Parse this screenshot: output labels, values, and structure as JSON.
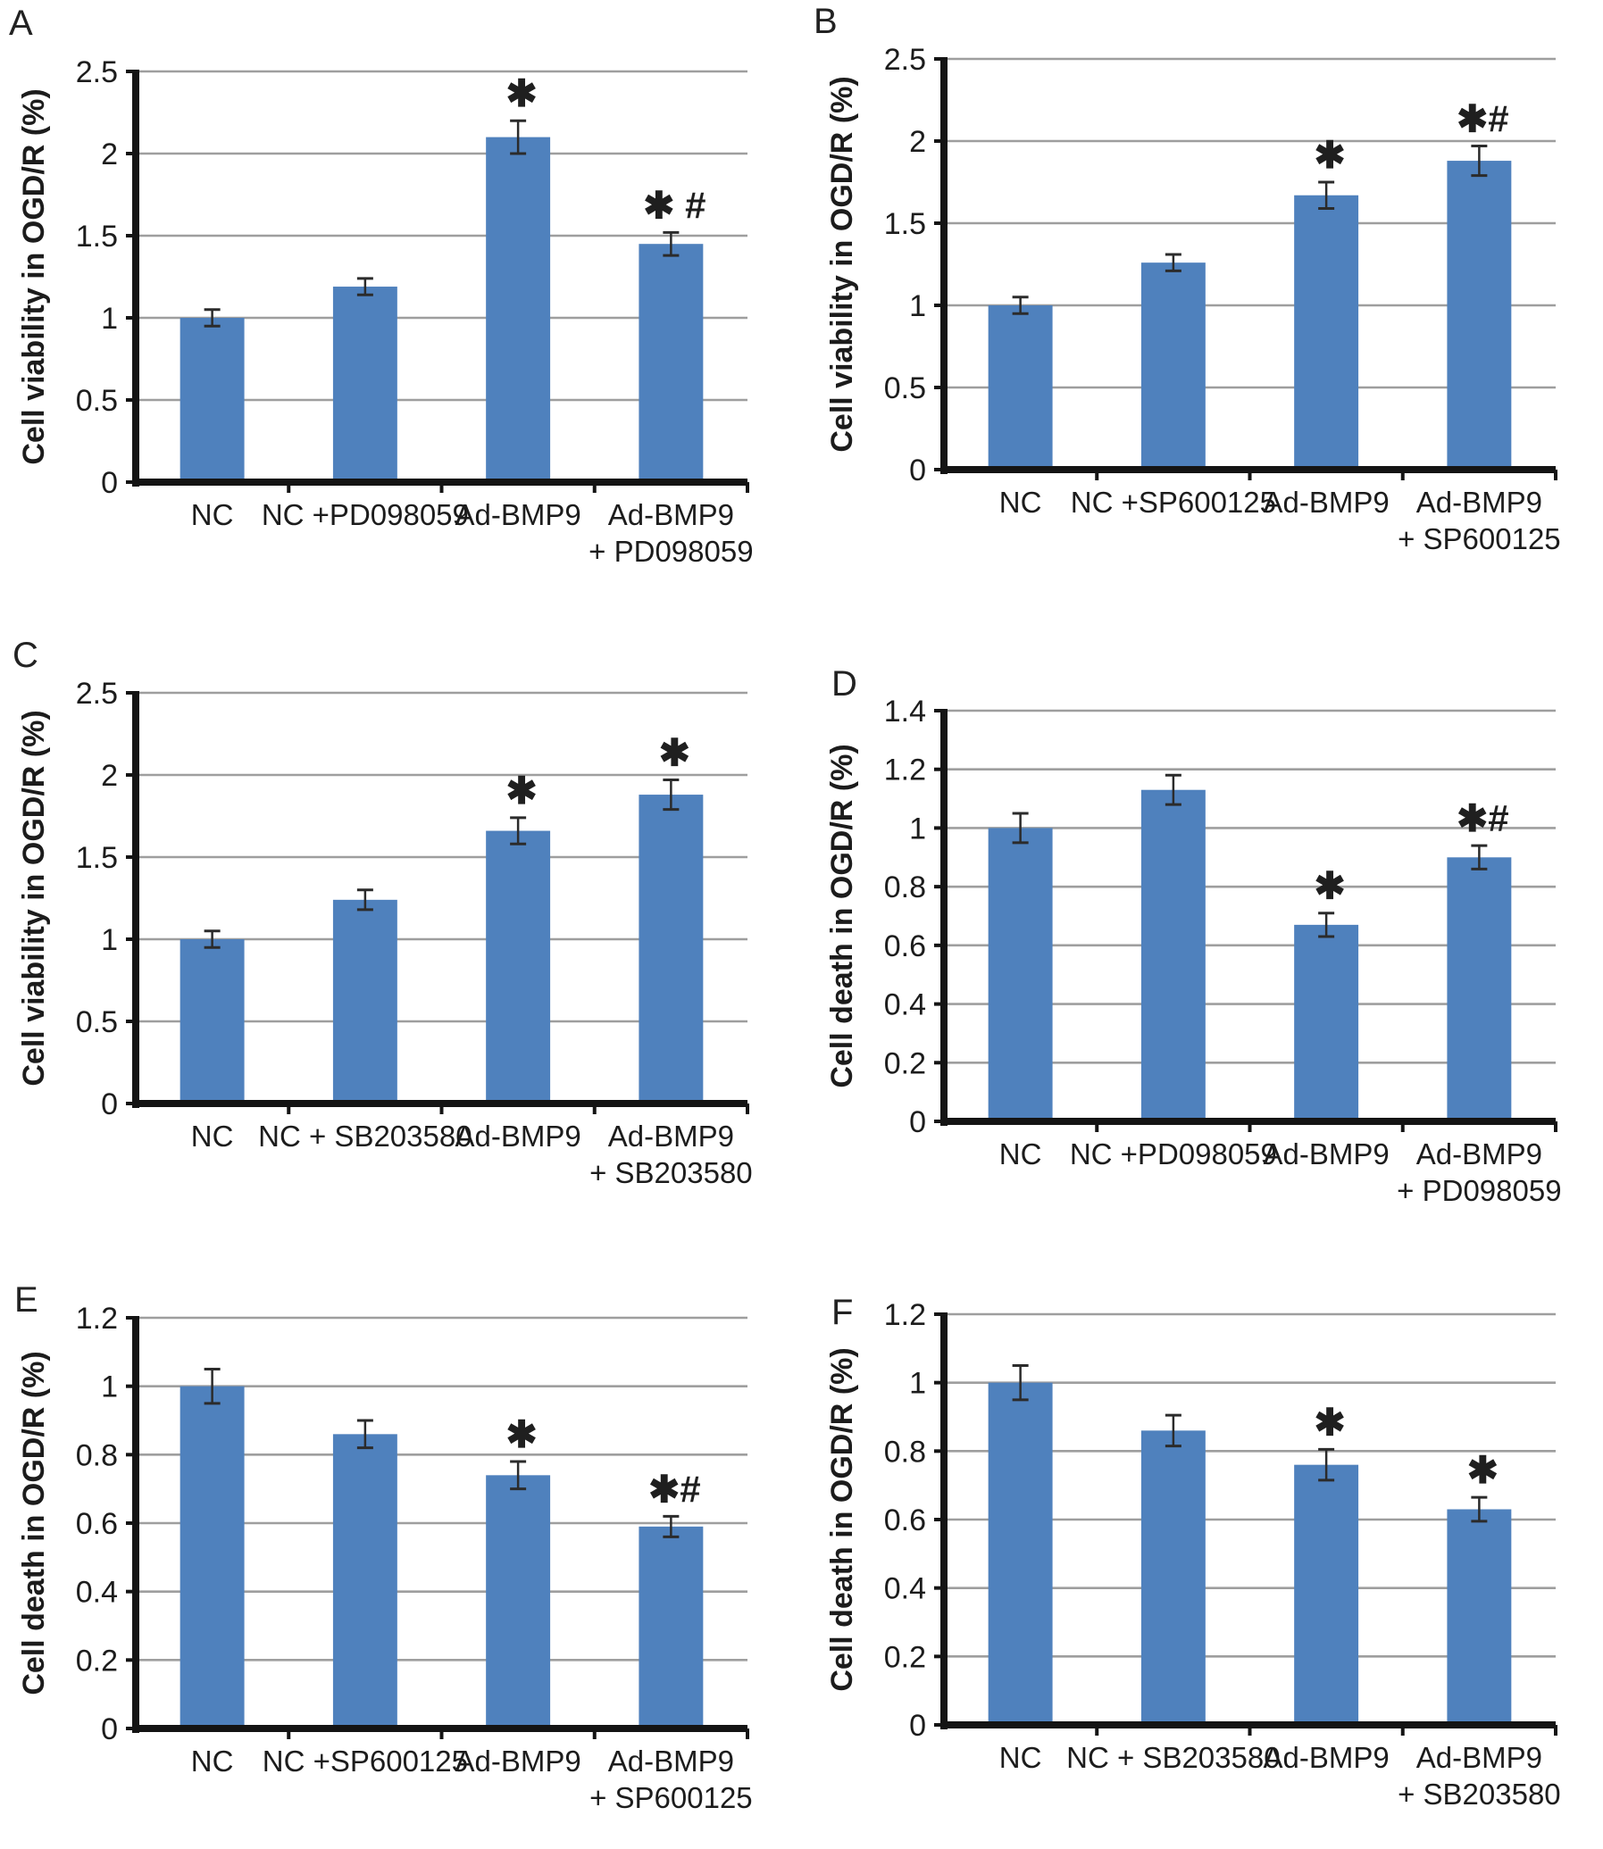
{
  "figure": {
    "description": "Six-panel bar chart figure of cell viability and cell death in OGD/R",
    "background": "#ffffff",
    "bar_color": "#4f81bd",
    "grid_color": "#9e9e9e",
    "axis_color": "#141414",
    "error_color": "#2b2b2b",
    "text_color": "#1c1c1c",
    "annotation_color": "#1f1f1f"
  },
  "chart_data": [
    {
      "panel_label": "A",
      "type": "bar",
      "title": "",
      "xlabel": "",
      "ylabel": "Cell viability in OGD/R (%)",
      "ylim": [
        0,
        2.5
      ],
      "yticks": [
        0,
        0.5,
        1,
        1.5,
        2,
        2.5
      ],
      "ytick_labels": [
        "0",
        "0.5",
        "1",
        "1.5",
        "2",
        "2.5"
      ],
      "grid": "horizontal",
      "legend": "none",
      "categories": [
        "NC",
        "NC +PD098059",
        "Ad-BMP9",
        "Ad-BMP9\n+ PD098059"
      ],
      "values": [
        1.0,
        1.19,
        2.1,
        1.45
      ],
      "errors": [
        0.05,
        0.05,
        0.1,
        0.07
      ],
      "annotations": [
        "",
        "",
        "✱",
        "✱ #"
      ]
    },
    {
      "panel_label": "B",
      "type": "bar",
      "title": "",
      "xlabel": "",
      "ylabel": "Cell viability in OGD/R (%)",
      "ylim": [
        0,
        2.5
      ],
      "yticks": [
        0,
        0.5,
        1,
        1.5,
        2,
        2.5
      ],
      "ytick_labels": [
        "0",
        "0.5",
        "1",
        "1.5",
        "2",
        "2.5"
      ],
      "grid": "horizontal",
      "legend": "none",
      "categories": [
        "NC",
        "NC +SP600125",
        "Ad-BMP9",
        "Ad-BMP9\n+ SP600125"
      ],
      "values": [
        1.0,
        1.26,
        1.67,
        1.88
      ],
      "errors": [
        0.05,
        0.05,
        0.08,
        0.09
      ],
      "annotations": [
        "",
        "",
        "✱",
        "✱#"
      ]
    },
    {
      "panel_label": "C",
      "type": "bar",
      "title": "",
      "xlabel": "",
      "ylabel": "Cell viability in OGD/R (%)",
      "ylim": [
        0,
        2.5
      ],
      "yticks": [
        0,
        0.5,
        1,
        1.5,
        2,
        2.5
      ],
      "ytick_labels": [
        "0",
        "0.5",
        "1",
        "1.5",
        "2",
        "2.5"
      ],
      "grid": "horizontal",
      "legend": "none",
      "categories": [
        "NC",
        "NC + SB203580",
        "Ad-BMP9",
        "Ad-BMP9\n+ SB203580"
      ],
      "values": [
        1.0,
        1.24,
        1.66,
        1.88
      ],
      "errors": [
        0.05,
        0.06,
        0.08,
        0.09
      ],
      "annotations": [
        "",
        "",
        "✱",
        "✱"
      ]
    },
    {
      "panel_label": "D",
      "type": "bar",
      "title": "",
      "xlabel": "",
      "ylabel": "Cell death in OGD/R (%)",
      "ylim": [
        0,
        1.4
      ],
      "yticks": [
        0,
        0.2,
        0.4,
        0.6,
        0.8,
        1,
        1.2,
        1.4
      ],
      "ytick_labels": [
        "0",
        "0.2",
        "0.4",
        "0.6",
        "0.8",
        "1",
        "1.2",
        "1.4"
      ],
      "grid": "horizontal",
      "legend": "none",
      "categories": [
        "NC",
        "NC +PD098059",
        "Ad-BMP9",
        "Ad-BMP9\n+ PD098059"
      ],
      "values": [
        1.0,
        1.13,
        0.67,
        0.9
      ],
      "errors": [
        0.05,
        0.05,
        0.04,
        0.04
      ],
      "annotations": [
        "",
        "",
        "✱",
        "✱#"
      ]
    },
    {
      "panel_label": "E",
      "type": "bar",
      "title": "",
      "xlabel": "",
      "ylabel": "Cell death in OGD/R (%)",
      "ylim": [
        0,
        1.2
      ],
      "yticks": [
        0,
        0.2,
        0.4,
        0.6,
        0.8,
        1,
        1.2
      ],
      "ytick_labels": [
        "0",
        "0.2",
        "0.4",
        "0.6",
        "0.8",
        "1",
        "1.2"
      ],
      "grid": "horizontal",
      "legend": "none",
      "categories": [
        "NC",
        "NC +SP600125",
        "Ad-BMP9",
        "Ad-BMP9\n+ SP600125"
      ],
      "values": [
        1.0,
        0.86,
        0.74,
        0.59
      ],
      "errors": [
        0.05,
        0.04,
        0.04,
        0.03
      ],
      "annotations": [
        "",
        "",
        "✱",
        "✱#"
      ]
    },
    {
      "panel_label": "F",
      "type": "bar",
      "title": "",
      "xlabel": "",
      "ylabel": "Cell death in OGD/R (%)",
      "ylim": [
        0,
        1.2
      ],
      "yticks": [
        0,
        0.2,
        0.4,
        0.6,
        0.8,
        1,
        1.2
      ],
      "ytick_labels": [
        "0",
        "0.2",
        "0.4",
        "0.6",
        "0.8",
        "1",
        "1.2"
      ],
      "grid": "horizontal",
      "legend": "none",
      "categories": [
        "NC",
        "NC + SB203580",
        "Ad-BMP9",
        "Ad-BMP9\n+ SB203580"
      ],
      "values": [
        1.0,
        0.86,
        0.76,
        0.63
      ],
      "errors": [
        0.05,
        0.045,
        0.045,
        0.035
      ],
      "annotations": [
        "",
        "",
        "✱",
        "✱"
      ]
    }
  ]
}
